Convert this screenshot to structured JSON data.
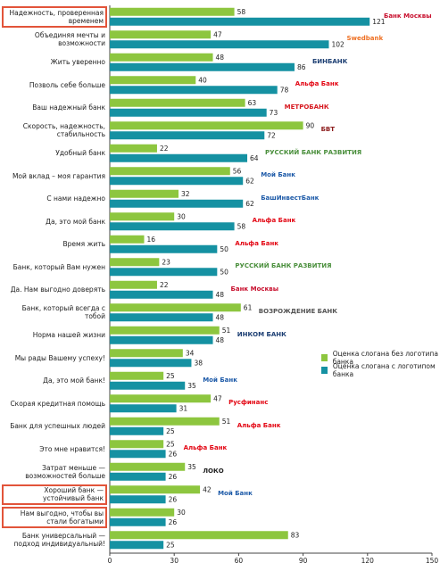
{
  "chart_data": {
    "type": "bar",
    "orientation": "horizontal",
    "categories": [
      "Надежность, проверенная временем",
      "Объединяя мечты и возможности",
      "Жить уверенно",
      "Позволь себе больше",
      "Ваш надежный банк",
      "Скорость, надежность, стабильность",
      "Удобный банк",
      "Мой вклад – моя гарантия",
      "С нами надежно",
      "Да, это мой банк",
      "Время жить",
      "Банк, который Вам нужен",
      "Да. Нам выгодно доверять",
      "Банк, который всегда с тобой",
      "Норма нашей жизни",
      "Мы рады Вашему успеху!",
      "Да, это мой банк!",
      "Скорая кредитная помощь",
      "Банк для успешных людей",
      "Это мне нравится!",
      "Затрат меньше — возможностей больше",
      "Хороший банк — устойчивый банк",
      "Нам выгодно, чтобы вы стали богатыми",
      "Банк универсальный — подход индивидуальный!"
    ],
    "series": [
      {
        "name": "Оценка слогана без логотипа банка",
        "color": "#8dc63f",
        "values": [
          58,
          47,
          48,
          40,
          63,
          90,
          22,
          56,
          32,
          30,
          16,
          23,
          22,
          61,
          51,
          34,
          25,
          47,
          51,
          25,
          35,
          42,
          30,
          83
        ]
      },
      {
        "name": "Оценка слогана с логотипом банка",
        "color": "#1591a2",
        "values": [
          121,
          102,
          86,
          78,
          73,
          72,
          64,
          62,
          62,
          58,
          50,
          50,
          48,
          48,
          48,
          38,
          35,
          31,
          25,
          26,
          26,
          26,
          26,
          25
        ]
      }
    ],
    "logos": [
      {
        "text": "Банк Москвы",
        "color": "#c8102e"
      },
      {
        "text": "Swedbank",
        "color": "#ee7023"
      },
      {
        "text": "БИНБАНК",
        "color": "#1d3f73"
      },
      {
        "text": "Альфа Банк",
        "color": "#e30613"
      },
      {
        "text": "МЕТРОБАНК",
        "color": "#d71920"
      },
      {
        "text": "БВТ",
        "color": "#8b1a1a"
      },
      {
        "text": "РУССКИЙ БАНК РАЗВИТИЯ",
        "color": "#4a8f3c"
      },
      {
        "text": "Мой Банк",
        "color": "#1d5aa8"
      },
      {
        "text": "БашИнвестБанк",
        "color": "#1d5aa8"
      },
      {
        "text": "Альфа Банк",
        "color": "#e30613"
      },
      {
        "text": "Альфа Банк",
        "color": "#e30613"
      },
      {
        "text": "РУССКИЙ БАНК РАЗВИТИЯ",
        "color": "#4a8f3c"
      },
      {
        "text": "Банк Москвы",
        "color": "#c8102e"
      },
      {
        "text": "ВОЗРОЖДЕНИЕ БАНК",
        "color": "#555"
      },
      {
        "text": "ИНКОМ БАНК",
        "color": "#1d3f73"
      },
      null,
      {
        "text": "Мой Банк",
        "color": "#1d5aa8"
      },
      {
        "text": "Русфинанс",
        "color": "#e30613"
      },
      {
        "text": "Альфа Банк",
        "color": "#e30613"
      },
      {
        "text": "Альфа Банк",
        "color": "#e30613"
      },
      {
        "text": "ЛОКО",
        "color": "#222"
      },
      {
        "text": "Мой Банк",
        "color": "#1d5aa8"
      },
      null,
      null
    ],
    "highlighted": [
      0,
      21,
      22
    ],
    "xlim": [
      0,
      150
    ],
    "xticks": [
      0,
      30,
      60,
      90,
      120,
      150
    ],
    "legend": "right"
  }
}
